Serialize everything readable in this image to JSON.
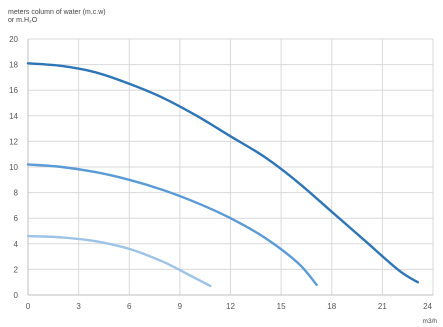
{
  "chart_data": {
    "type": "line",
    "ylabel_lines": [
      "meters column of water (m.c.w)",
      "or m.H₂O"
    ],
    "xlabel": "m3/h",
    "xlim": [
      0,
      24
    ],
    "ylim": [
      0,
      20
    ],
    "x_ticks": [
      0,
      3,
      6,
      9,
      12,
      15,
      18,
      21,
      24
    ],
    "x_tick_labels": [
      "0",
      "3",
      "6",
      "9",
      "12",
      "15",
      "18",
      "21",
      "24"
    ],
    "y_ticks": [
      0,
      2,
      4,
      6,
      8,
      10,
      12,
      14,
      16,
      18,
      20
    ],
    "y_tick_labels": [
      "0",
      "2",
      "4",
      "6",
      "8",
      "10",
      "12",
      "14",
      "16",
      "18",
      "20"
    ],
    "grid": true,
    "series": [
      {
        "color": "#2e75b6",
        "points": [
          [
            0,
            18.1
          ],
          [
            2,
            17.9
          ],
          [
            4,
            17.4
          ],
          [
            6,
            16.5
          ],
          [
            8,
            15.4
          ],
          [
            10,
            14.0
          ],
          [
            12,
            12.4
          ],
          [
            14,
            10.8
          ],
          [
            16,
            8.8
          ],
          [
            18,
            6.5
          ],
          [
            20,
            4.2
          ],
          [
            22,
            1.9
          ],
          [
            23.1,
            1.0
          ]
        ]
      },
      {
        "color": "#5b9bd5",
        "points": [
          [
            0,
            10.2
          ],
          [
            2,
            10.0
          ],
          [
            4,
            9.6
          ],
          [
            6,
            9.0
          ],
          [
            8,
            8.2
          ],
          [
            10,
            7.2
          ],
          [
            12,
            6.0
          ],
          [
            14,
            4.5
          ],
          [
            16,
            2.5
          ],
          [
            17.1,
            0.8
          ]
        ]
      },
      {
        "color": "#9dc3e6",
        "points": [
          [
            0,
            4.6
          ],
          [
            2,
            4.5
          ],
          [
            4,
            4.2
          ],
          [
            6,
            3.6
          ],
          [
            8,
            2.6
          ],
          [
            9.5,
            1.6
          ],
          [
            10.8,
            0.7
          ]
        ]
      }
    ]
  }
}
